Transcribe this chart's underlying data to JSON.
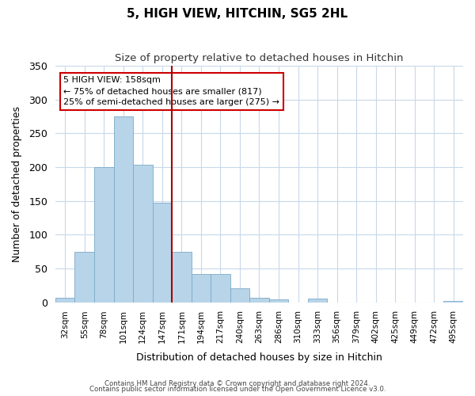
{
  "title": "5, HIGH VIEW, HITCHIN, SG5 2HL",
  "subtitle": "Size of property relative to detached houses in Hitchin",
  "xlabel": "Distribution of detached houses by size in Hitchin",
  "ylabel": "Number of detached properties",
  "bar_color": "#b8d4e8",
  "bar_edge_color": "#7aaac8",
  "background_color": "#ffffff",
  "grid_color": "#c8d8e8",
  "categories": [
    "32sqm",
    "55sqm",
    "78sqm",
    "101sqm",
    "124sqm",
    "147sqm",
    "171sqm",
    "194sqm",
    "217sqm",
    "240sqm",
    "263sqm",
    "286sqm",
    "310sqm",
    "333sqm",
    "356sqm",
    "379sqm",
    "402sqm",
    "425sqm",
    "449sqm",
    "472sqm",
    "495sqm"
  ],
  "values": [
    7,
    75,
    200,
    275,
    204,
    147,
    75,
    42,
    42,
    20,
    7,
    4,
    0,
    5,
    0,
    0,
    0,
    0,
    0,
    0,
    2
  ],
  "ylim": [
    0,
    350
  ],
  "yticks": [
    0,
    50,
    100,
    150,
    200,
    250,
    300,
    350
  ],
  "property_line_x": 5.5,
  "property_line_color": "#aa0000",
  "annotation_title": "5 HIGH VIEW: 158sqm",
  "annotation_line1": "← 75% of detached houses are smaller (817)",
  "annotation_line2": "25% of semi-detached houses are larger (275) →",
  "annotation_box_color": "#ffffff",
  "annotation_box_edge_color": "#cc0000",
  "footer_line1": "Contains HM Land Registry data © Crown copyright and database right 2024.",
  "footer_line2": "Contains public sector information licensed under the Open Government Licence v3.0."
}
